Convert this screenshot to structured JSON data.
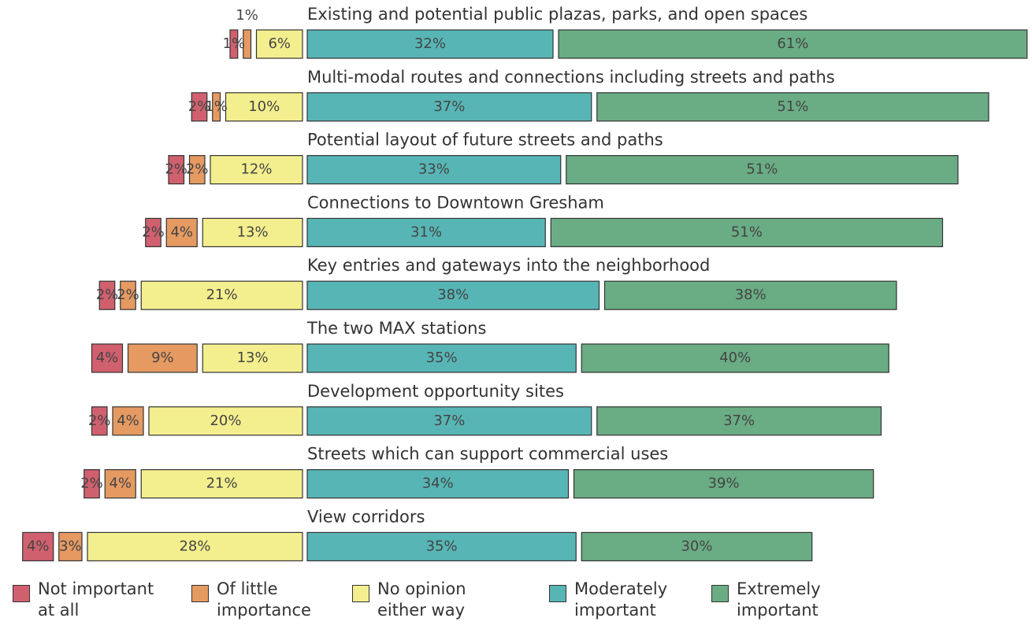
{
  "chart_data": {
    "type": "bar",
    "orientation": "horizontal",
    "stacked": true,
    "categories": [
      "Existing and potential public plazas, parks, and open spaces",
      "Multi-modal routes and connections including streets and paths",
      "Potential layout of future streets and paths",
      "Connections to Downtown Gresham",
      "Key entries and gateways into the neighborhood",
      "The two MAX stations",
      "Development opportunity sites",
      "Streets which can support commercial uses",
      "View corridors"
    ],
    "series": [
      {
        "name": "Not important at all",
        "color": "#d0606e",
        "values": [
          1,
          2,
          2,
          2,
          2,
          4,
          2,
          2,
          4
        ],
        "value_labels": [
          "1%",
          "2%",
          "2%",
          "2%",
          "2%",
          "4%",
          "2%",
          "2%",
          "4%"
        ]
      },
      {
        "name": "Of little importance",
        "color": "#e59a62",
        "values": [
          1,
          1,
          2,
          4,
          2,
          9,
          4,
          4,
          3
        ],
        "value_labels": [
          "1%",
          "1%",
          "2%",
          "4%",
          "2%",
          "9%",
          "4%",
          "4%",
          "3%"
        ]
      },
      {
        "name": "No opinion either way",
        "color": "#f4ef8e",
        "values": [
          6,
          10,
          12,
          13,
          21,
          13,
          20,
          21,
          28
        ],
        "value_labels": [
          "6%",
          "10%",
          "12%",
          "13%",
          "21%",
          "13%",
          "20%",
          "21%",
          "28%"
        ]
      },
      {
        "name": "Moderately important",
        "color": "#58b5b5",
        "values": [
          32,
          37,
          33,
          31,
          38,
          35,
          37,
          34,
          35
        ],
        "value_labels": [
          "32%",
          "37%",
          "33%",
          "31%",
          "38%",
          "35%",
          "37%",
          "34%",
          "35%"
        ]
      },
      {
        "name": "Extremely important",
        "color": "#6aac84",
        "values": [
          61,
          51,
          51,
          51,
          38,
          40,
          37,
          39,
          30
        ],
        "value_labels": [
          "61%",
          "51%",
          "51%",
          "51%",
          "38%",
          "40%",
          "37%",
          "39%",
          "30%"
        ]
      }
    ]
  }
}
